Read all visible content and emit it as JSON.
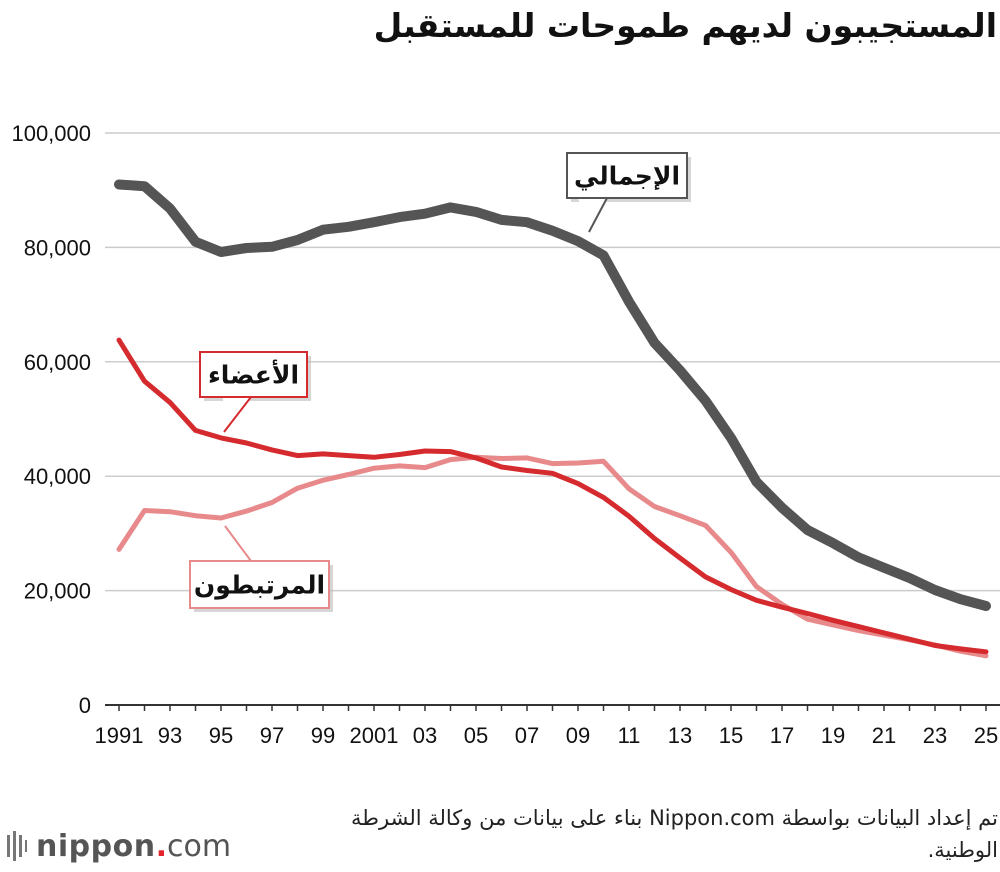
{
  "chart_data": {
    "type": "line",
    "title": "المستجيبون لديهم طموحات للمستقبل",
    "x": [
      1991,
      1992,
      1993,
      1994,
      1995,
      1996,
      1997,
      1998,
      1999,
      2000,
      2001,
      2002,
      2003,
      2004,
      2005,
      2006,
      2007,
      2008,
      2009,
      2010,
      2011,
      2012,
      2013,
      2014,
      2015,
      2016,
      2017,
      2018,
      2019,
      2020,
      2021,
      2022,
      2023,
      2024,
      2025
    ],
    "x_tick_labels": [
      "1991",
      "93",
      "95",
      "97",
      "99",
      "2001",
      "03",
      "05",
      "07",
      "09",
      "11",
      "13",
      "15",
      "17",
      "19",
      "21",
      "23",
      "25"
    ],
    "y_ticks": [
      "0",
      "20,000",
      "40,000",
      "60,000",
      "80,000",
      "100,000"
    ],
    "ylim": [
      0,
      100000
    ],
    "grid": true,
    "series": [
      {
        "name": "الإجمالي",
        "color": "#555555",
        "values": [
          91000,
          90700,
          86800,
          81000,
          79200,
          79900,
          80100,
          81300,
          83100,
          83600,
          84400,
          85300,
          85900,
          87000,
          86200,
          84800,
          84400,
          82900,
          81100,
          78600,
          70500,
          63300,
          58500,
          53200,
          46700,
          39000,
          34500,
          30600,
          28300,
          25800,
          24000,
          22200,
          20100,
          18500,
          17300
        ]
      },
      {
        "name": "الأعضاء",
        "color": "#d52b2e",
        "values": [
          63800,
          56600,
          52900,
          48000,
          46700,
          45800,
          44600,
          43600,
          43900,
          43600,
          43300,
          43800,
          44400,
          44300,
          43200,
          41600,
          41000,
          40500,
          38700,
          36300,
          33000,
          29100,
          25700,
          22400,
          20200,
          18300,
          17100,
          16000,
          14800,
          13700,
          12600,
          11500,
          10400,
          9800,
          9300
        ]
      },
      {
        "name": "المرتبطون",
        "color": "#e88a8b",
        "values": [
          27200,
          34000,
          33800,
          33100,
          32700,
          33900,
          35400,
          37900,
          39300,
          40300,
          41400,
          41800,
          41500,
          42900,
          43300,
          43100,
          43200,
          42200,
          42300,
          42600,
          37800,
          34700,
          33100,
          31400,
          26700,
          20700,
          17600,
          15000,
          14000,
          13000,
          12200,
          11400,
          10500,
          9400,
          8600
        ]
      }
    ]
  },
  "source_note": "تم إعداد البيانات بواسطة Nippon.com بناء على بيانات من وكالة الشرطة الوطنية.",
  "logo": {
    "name_main": "nippon",
    "dot": ".",
    "name_tld": "com"
  }
}
